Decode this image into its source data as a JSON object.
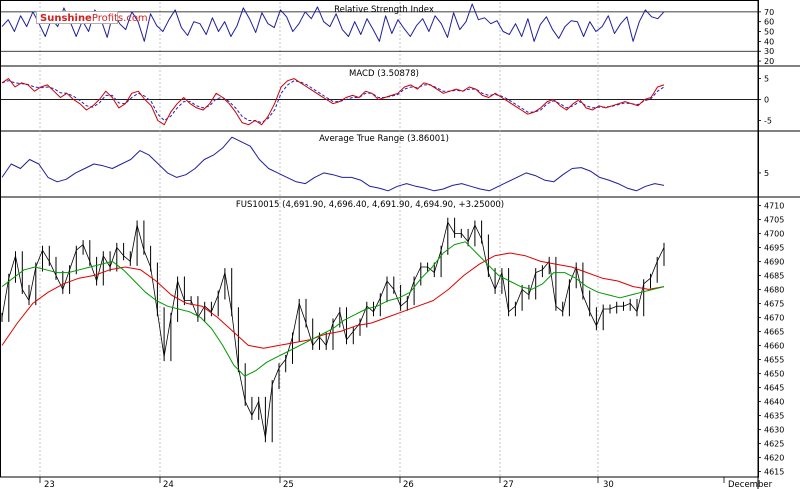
{
  "watermark": {
    "brand_first": "Sunshine",
    "brand_second": "Profits.com"
  },
  "colors": {
    "price": "#000000",
    "rsi": "#1f1f9e",
    "macd": "#cc0000",
    "macd_signal": "#1f1fcc",
    "atr": "#1f1f9e",
    "ma_fast": "#009900",
    "ma_slow": "#e00000",
    "grid": "#b8b8b8",
    "ref": "#000000"
  },
  "chart_data": [
    {
      "type": "line",
      "title": "Relative Strength Index",
      "y_ticks": [
        "70",
        "60",
        "50",
        "40",
        "30",
        "20"
      ],
      "ylim": [
        15,
        80
      ],
      "reference_lines": [
        70,
        30
      ],
      "series": [
        {
          "values": [
            55,
            62,
            50,
            66,
            55,
            70,
            58,
            45,
            63,
            55,
            74,
            60,
            45,
            61,
            50,
            72,
            62,
            44,
            70,
            58,
            52,
            70,
            60,
            40,
            68,
            56,
            50,
            62,
            72,
            54,
            46,
            60,
            58,
            47,
            64,
            50,
            60,
            45,
            56,
            74,
            63,
            49,
            69,
            58,
            54,
            72,
            65,
            50,
            58,
            70,
            63,
            75,
            60,
            55,
            68,
            52,
            45,
            60,
            47,
            63,
            52,
            40,
            66,
            48,
            62,
            53,
            45,
            56,
            63,
            50,
            66,
            58,
            44,
            69,
            52,
            60,
            78,
            62,
            64,
            58,
            61,
            50,
            47,
            58,
            45,
            63,
            40,
            57,
            65,
            52,
            43,
            55,
            61,
            60,
            45,
            60,
            50,
            55,
            66,
            48,
            58,
            65,
            40,
            60,
            72,
            65,
            63,
            70
          ]
        }
      ]
    },
    {
      "type": "line",
      "title": "MACD (3.50878)",
      "y_ticks": [
        "5",
        "0",
        "-5"
      ],
      "ylim": [
        -7.5,
        8
      ],
      "reference_lines": [
        0
      ],
      "series": [
        {
          "values": [
            4,
            5,
            3,
            4,
            3.5,
            2,
            3,
            3.5,
            2,
            0.5,
            1.5,
            0,
            -1,
            -2.5,
            -1.5,
            0,
            2,
            0.5,
            -2,
            -1,
            1.5,
            2,
            0,
            -1.5,
            -5,
            -6,
            -3,
            -1,
            0.5,
            -1,
            -2,
            -2.5,
            -1,
            1.5,
            0.5,
            -1,
            -3,
            -5.5,
            -6,
            -5,
            -6,
            -4,
            -1,
            3,
            4.5,
            5,
            4,
            3,
            2,
            1,
            0,
            -1,
            -0.5,
            0.5,
            1,
            0.5,
            2,
            1.5,
            0,
            0.5,
            1,
            1.5,
            3,
            3.5,
            2.5,
            4,
            3.5,
            2.5,
            1.5,
            2,
            2.5,
            2,
            3,
            2.5,
            1,
            0.5,
            1.5,
            0.5,
            -0.5,
            -1.5,
            -2.5,
            -3.5,
            -3,
            -2,
            -0.5,
            0,
            -1.5,
            -2.5,
            -1,
            0,
            -2,
            -2.5,
            -1.5,
            -2,
            -1.5,
            -1,
            -0.5,
            -1,
            -1.5,
            0,
            0.5,
            3,
            3.5
          ]
        },
        {
          "values": [
            4,
            4.5,
            4,
            3.8,
            3.6,
            3,
            2.8,
            3,
            2.6,
            1.6,
            1.5,
            0.8,
            -0.2,
            -1.5,
            -1.8,
            -0.8,
            1,
            1,
            -0.8,
            -1,
            0.5,
            1.5,
            0.8,
            -0.5,
            -3.5,
            -5,
            -4,
            -2,
            -0.5,
            -0.5,
            -1.5,
            -2,
            -1.5,
            0.2,
            0.5,
            -0.5,
            -2,
            -4,
            -5,
            -5,
            -5.5,
            -4.5,
            -2.5,
            1.5,
            3.5,
            4.5,
            4.2,
            3.5,
            2.5,
            1.5,
            0.5,
            -0.5,
            -0.5,
            0,
            0.5,
            0.5,
            1.5,
            1.5,
            0.5,
            0.5,
            0.8,
            1.2,
            2.5,
            3,
            2.8,
            3.5,
            3.5,
            2.8,
            2,
            2,
            2.2,
            2,
            2.5,
            2.5,
            1.5,
            1,
            1.2,
            0.8,
            0,
            -1,
            -2,
            -3,
            -3,
            -2.5,
            -1,
            -0.3,
            -1,
            -2,
            -1.5,
            -0.5,
            -1.5,
            -2,
            -1.8,
            -1.8,
            -1.6,
            -1.2,
            -0.8,
            -1,
            -1.2,
            -0.3,
            0.2,
            2,
            3
          ]
        }
      ]
    },
    {
      "type": "line",
      "title": "Average True Range (3.86001)",
      "y_ticks": [
        "5"
      ],
      "ylim": [
        2.3,
        9.7
      ],
      "series": [
        {
          "values": [
            4.5,
            6,
            5.5,
            6.5,
            6,
            4.5,
            4,
            4.3,
            5,
            5.5,
            6,
            5.8,
            5.5,
            6,
            6.5,
            7.5,
            7,
            6,
            5,
            4.5,
            4.8,
            5.5,
            6.5,
            7,
            7.8,
            9,
            8.5,
            8,
            6.5,
            5.5,
            5,
            4.5,
            4,
            3.8,
            4.5,
            5,
            4.8,
            4.5,
            4.5,
            4.2,
            3.5,
            3.3,
            3,
            3.5,
            3.8,
            3.5,
            3.3,
            3,
            3.2,
            3.6,
            3.8,
            3.5,
            3.2,
            3,
            3.5,
            4,
            4.5,
            5,
            4.7,
            4.2,
            4,
            4.8,
            5.5,
            5.6,
            5.2,
            4.5,
            4.2,
            3.8,
            3.3,
            3,
            3.5,
            3.8,
            3.6
          ]
        }
      ]
    },
    {
      "type": "line",
      "title": "FUS10015 (4,691.90, 4,696.40, 4,691.90, 4,694.90, +3.25000)",
      "x_ticks": [
        "23",
        "24",
        "25",
        "26",
        "27",
        "30",
        "December"
      ],
      "y_ticks": [
        "4710",
        "4705",
        "4700",
        "4695",
        "4690",
        "4685",
        "4680",
        "4675",
        "4670",
        "4665",
        "4660",
        "4655",
        "4650",
        "4645",
        "4640",
        "4635",
        "4630",
        "4625",
        "4620",
        "4615"
      ],
      "ylim": [
        4613,
        4713
      ],
      "series": [
        {
          "name": "price",
          "values": [
            4670,
            4684,
            4692,
            4680,
            4676,
            4688,
            4694,
            4690,
            4685,
            4680,
            4687,
            4694,
            4696,
            4690,
            4683,
            4692,
            4688,
            4695,
            4692,
            4690,
            4703,
            4694,
            4688,
            4672,
            4656,
            4670,
            4683,
            4676,
            4676,
            4670,
            4674,
            4672,
            4678,
            4686,
            4672,
            4652,
            4640,
            4635,
            4640,
            4627,
            4646,
            4652,
            4655,
            4663,
            4675,
            4668,
            4660,
            4663,
            4660,
            4668,
            4672,
            4662,
            4665,
            4668,
            4674,
            4672,
            4677,
            4683,
            4680,
            4674,
            4676,
            4683,
            4688,
            4688,
            4686,
            4694,
            4704,
            4700,
            4700,
            4697,
            4703,
            4698,
            4686,
            4680,
            4686,
            4672,
            4674,
            4680,
            4678,
            4686,
            4687,
            4690,
            4674,
            4672,
            4682,
            4688,
            4678,
            4672,
            4667,
            4673,
            4673,
            4674,
            4674,
            4675,
            4672,
            4682,
            4684,
            4690,
            4695
          ]
        },
        {
          "name": "green moving average",
          "values": [
            4681,
            4684,
            4687,
            4688,
            4687,
            4686,
            4686,
            4687,
            4688,
            4689,
            4690,
            4687,
            4683,
            4679,
            4676,
            4674,
            4673,
            4672,
            4670,
            4666,
            4660,
            4653,
            4649,
            4651,
            4654,
            4656,
            4658,
            4660,
            4662,
            4664,
            4666,
            4669,
            4671,
            4673,
            4674,
            4676,
            4677,
            4679,
            4684,
            4688,
            4693,
            4696,
            4697,
            4693,
            4689,
            4685,
            4683,
            4681,
            4680,
            4682,
            4686,
            4686,
            4684,
            4681,
            4679,
            4678,
            4677,
            4678,
            4679,
            4680,
            4681
          ]
        },
        {
          "name": "red moving average",
          "values": [
            4660,
            4668,
            4675,
            4679,
            4682,
            4684,
            4685,
            4687,
            4688,
            4687,
            4683,
            4678,
            4675,
            4674,
            4670,
            4665,
            4660,
            4659,
            4660,
            4661,
            4662,
            4664,
            4665,
            4667,
            4668,
            4670,
            4672,
            4674,
            4676,
            4680,
            4685,
            4689,
            4692,
            4693,
            4692,
            4690,
            4689,
            4688,
            4686,
            4684,
            4683,
            4681,
            4680,
            4681
          ]
        }
      ]
    }
  ]
}
